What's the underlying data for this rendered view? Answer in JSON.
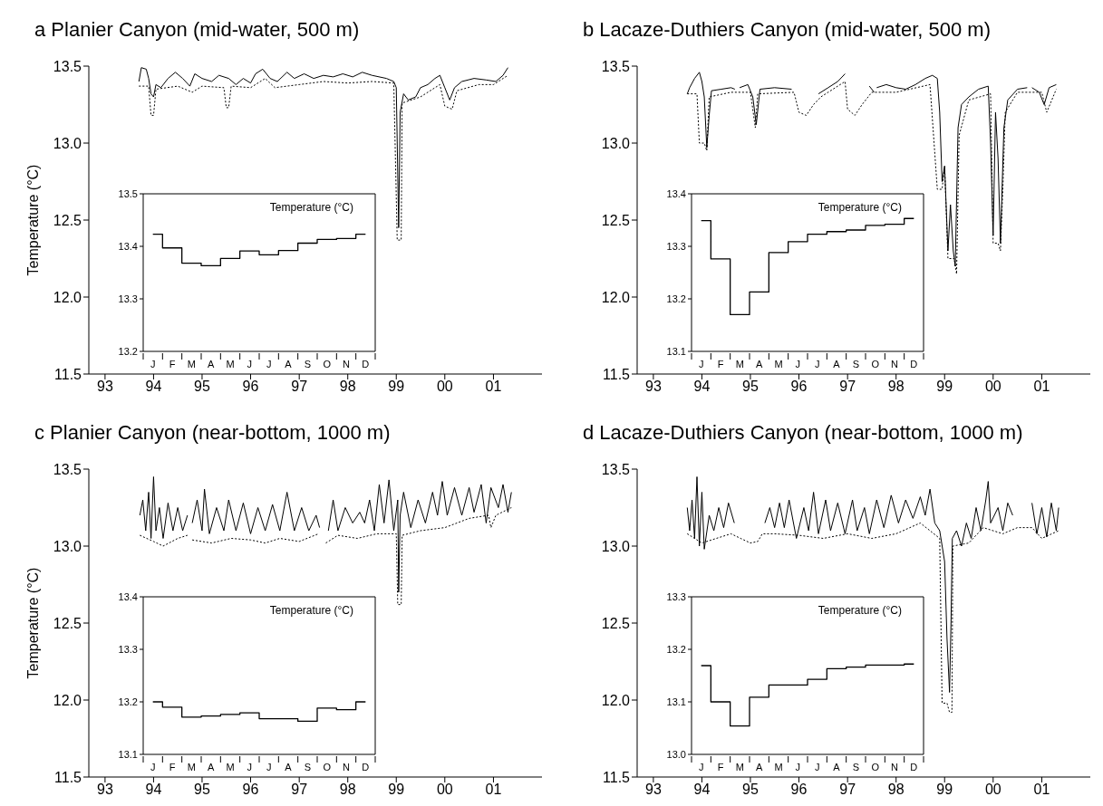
{
  "chart_data": [
    {
      "type": "line",
      "title": "a Planier Canyon (mid-water, 500 m)",
      "ylabel": "Temperature  (°C)",
      "xlim": [
        "1992-09-01",
        "2002-01-01"
      ],
      "xticks": [
        {
          "value": "1993",
          "label": "93"
        },
        {
          "value": "1994",
          "label": "94"
        },
        {
          "value": "1995",
          "label": "95"
        },
        {
          "value": "1996",
          "label": "96"
        },
        {
          "value": "1997",
          "label": "97"
        },
        {
          "value": "1998",
          "label": "98"
        },
        {
          "value": "1999",
          "label": "99"
        },
        {
          "value": "2000",
          "label": "00"
        },
        {
          "value": "2001",
          "label": "01"
        }
      ],
      "ylim": [
        11.5,
        13.5
      ],
      "yticks": [
        {
          "value": 11.5,
          "label": "11.5"
        },
        {
          "value": 12,
          "label": "12.0"
        },
        {
          "value": 12.5,
          "label": "12.5"
        },
        {
          "value": 13,
          "label": "13.0"
        },
        {
          "value": 13.5,
          "label": "13.5"
        }
      ],
      "series": [
        {
          "color": "#000000",
          "line_style": "solid",
          "x": [
            "1993-09-13",
            "1993-10-01",
            "1993-11-07",
            "1993-11-25",
            "1993-12-13",
            "1994-01-01",
            "1994-01-19",
            "1994-02-25",
            "1994-04-20",
            "1994-06-14",
            "1994-08-08",
            "1994-10-01",
            "1994-11-07",
            "1995-01-01",
            "1995-03-14",
            "1995-05-08",
            "1995-07-20",
            "1995-09-13",
            "1995-11-07",
            "1996-01-01",
            "1996-02-07",
            "1996-04-01",
            "1996-05-27",
            "1996-07-20",
            "1996-10-01",
            "1996-11-25",
            "1997-02-07",
            "1997-04-20",
            "1997-07-02",
            "1997-09-13",
            "1997-11-25",
            "1998-02-07",
            "1998-04-20",
            "1998-07-02",
            "1998-10-19",
            "1998-12-13",
            "1999-01-01",
            "1999-01-19",
            "1999-01-30",
            "1999-02-25",
            "1999-04-01",
            "1999-05-27",
            "1999-07-02",
            "1999-08-26",
            "1999-10-19",
            "1999-11-25",
            "2000-01-01",
            "2000-02-07",
            "2000-03-14",
            "2000-05-08",
            "2000-08-08",
            "2000-11-07",
            "2001-01-19",
            "2001-03-14",
            "2001-04-20"
          ],
          "values": [
            13.4,
            13.49,
            13.48,
            13.42,
            13.32,
            13.3,
            13.38,
            13.36,
            13.42,
            13.46,
            13.42,
            13.37,
            13.45,
            13.42,
            13.4,
            13.44,
            13.42,
            13.38,
            13.42,
            13.39,
            13.45,
            13.48,
            13.42,
            13.4,
            13.46,
            13.42,
            13.45,
            13.42,
            13.44,
            13.43,
            13.45,
            13.43,
            13.46,
            13.44,
            13.42,
            13.4,
            13.36,
            12.45,
            13.2,
            13.32,
            13.28,
            13.3,
            13.36,
            13.38,
            13.42,
            13.44,
            13.36,
            13.28,
            13.36,
            13.4,
            13.42,
            13.41,
            13.4,
            13.44,
            13.49
          ]
        },
        {
          "color": "#000000",
          "line_style": "dotted",
          "x": [
            "1993-09-13",
            "1993-11-25",
            "1993-12-13",
            "1994-01-01",
            "1994-01-19",
            "1994-07-02",
            "1994-10-19",
            "1995-01-01",
            "1995-06-14",
            "1995-07-02",
            "1995-07-20",
            "1995-08-08",
            "1996-01-01",
            "1996-04-20",
            "1996-07-02",
            "1997-01-01",
            "1997-07-02",
            "1998-01-01",
            "1998-07-02",
            "1998-12-13",
            "1999-01-08",
            "1999-02-07",
            "1999-02-14",
            "1999-07-02",
            "1999-11-25",
            "2000-01-01",
            "2000-02-25",
            "2000-04-01",
            "2000-09-13",
            "2001-01-01",
            "2001-04-20"
          ],
          "values": [
            13.37,
            13.37,
            13.18,
            13.18,
            13.35,
            13.37,
            13.33,
            13.37,
            13.36,
            13.23,
            13.23,
            13.37,
            13.36,
            13.42,
            13.36,
            13.38,
            13.4,
            13.39,
            13.4,
            13.39,
            12.37,
            12.37,
            13.26,
            13.3,
            13.38,
            13.24,
            13.22,
            13.34,
            13.38,
            13.38,
            13.44
          ]
        }
      ]
    },
    {
      "type": "step",
      "ylabel": "Temperature (°C)",
      "categories": [
        "J",
        "F",
        "M",
        "A",
        "M",
        "J",
        "J",
        "A",
        "S",
        "O",
        "N",
        "D"
      ],
      "values": [
        13.423,
        13.397,
        13.368,
        13.363,
        13.377,
        13.391,
        13.384,
        13.392,
        13.406,
        13.413,
        13.415,
        13.423
      ],
      "color": "#000000",
      "line_style": "solid",
      "ylim": [
        13.2,
        13.5
      ],
      "yticks": [
        13.2,
        13.3,
        13.4,
        13.5
      ]
    },
    {
      "type": "line",
      "title": "b Lacaze-Duthiers Canyon (mid-water, 500 m)",
      "xlim": [
        "1992-09-01",
        "2002-01-01"
      ],
      "xticks": [
        {
          "value": "1993",
          "label": "93"
        },
        {
          "value": "1994",
          "label": "94"
        },
        {
          "value": "1995",
          "label": "95"
        },
        {
          "value": "1996",
          "label": "96"
        },
        {
          "value": "1997",
          "label": "97"
        },
        {
          "value": "1998",
          "label": "98"
        },
        {
          "value": "1999",
          "label": "99"
        },
        {
          "value": "2000",
          "label": "00"
        },
        {
          "value": "2001",
          "label": "01"
        }
      ],
      "ylim": [
        11.5,
        13.5
      ],
      "yticks": [
        {
          "value": 11.5,
          "label": "11.5"
        },
        {
          "value": 12,
          "label": "12.0"
        },
        {
          "value": 12.5,
          "label": "12.5"
        },
        {
          "value": 13,
          "label": "13.0"
        },
        {
          "value": 13.5,
          "label": "13.5"
        }
      ],
      "series": [
        {
          "color": "#000000",
          "line_style": "solid",
          "x": [
            "1993-09-13",
            "1993-10-01",
            "1993-11-07",
            "1993-12-13",
            "1994-01-01",
            "1994-01-19",
            "1994-02-07",
            "1994-02-25",
            "1994-03-14",
            "1994-05-27",
            "1994-08-08",
            "1994-09-06",
            "1994-09-20",
            "1994-10-12",
            "1994-12-13",
            "1995-01-19",
            "1995-02-14",
            "1995-03-14",
            "1995-07-02",
            "1995-11-07",
            "1996-02-07",
            "1996-05-27",
            "1996-08-08",
            "1996-10-19",
            "1996-12-13",
            "1997-03-14",
            "1997-06-14",
            "1997-07-20",
            "1997-07-28",
            "1997-08-08",
            "1997-10-19",
            "1998-01-01",
            "1998-03-14",
            "1998-05-27",
            "1998-08-08",
            "1998-10-01",
            "1998-11-07",
            "1998-11-25",
            "1998-12-13",
            "1999-01-01",
            "1999-01-26",
            "1999-02-14",
            "1999-03-07",
            "1999-03-22",
            "1999-04-12",
            "1999-05-08",
            "1999-07-02",
            "1999-09-13",
            "1999-11-25",
            "1999-12-13",
            "2000-01-01",
            "2000-01-19",
            "2000-02-07",
            "2000-02-25",
            "2000-03-22",
            "2000-04-20",
            "2000-07-02",
            "2000-09-13",
            "2000-10-01",
            "2000-10-19",
            "2000-12-13",
            "2001-01-19",
            "2001-02-25",
            "2001-04-20"
          ],
          "values": [
            13.32,
            13.36,
            13.42,
            13.46,
            13.4,
            13.3,
            12.97,
            13.18,
            13.34,
            13.35,
            13.36,
            13.35,
            null,
            13.36,
            13.38,
            13.3,
            13.12,
            13.35,
            13.36,
            13.35,
            null,
            13.32,
            13.36,
            13.4,
            13.45,
            null,
            13.37,
            13.33,
            null,
            13.36,
            13.38,
            13.36,
            13.35,
            13.38,
            13.42,
            13.44,
            13.42,
            13.2,
            12.75,
            12.85,
            12.3,
            12.6,
            12.3,
            12.2,
            13.1,
            13.25,
            13.3,
            13.35,
            13.37,
            13.0,
            12.4,
            13.2,
            12.9,
            12.35,
            13.1,
            13.28,
            13.35,
            13.36,
            null,
            13.36,
            13.33,
            13.25,
            13.36,
            13.38
          ]
        },
        {
          "color": "#000000",
          "line_style": "dotted",
          "x": [
            "1993-09-13",
            "1993-11-25",
            "1993-12-13",
            "1994-01-19",
            "1994-02-07",
            "1994-02-25",
            "1994-08-08",
            "1995-01-01",
            "1995-02-07",
            "1995-02-25",
            "1995-11-25",
            "1996-01-01",
            "1996-02-25",
            "1996-04-20",
            "1996-06-14",
            "1996-12-13",
            "1997-01-01",
            "1997-02-25",
            "1997-04-20",
            "1997-07-02",
            "1998-01-01",
            "1998-09-13",
            "1998-11-07",
            "1998-12-13",
            "1999-01-01",
            "1999-01-26",
            "1999-03-14",
            "1999-04-01",
            "1999-04-20",
            "1999-07-02",
            "1999-12-13",
            "2000-01-01",
            "2000-02-07",
            "2000-02-25",
            "2000-03-14",
            "2000-04-01",
            "2000-07-02",
            "2001-01-01",
            "2001-02-07",
            "2001-04-20"
          ],
          "values": [
            13.32,
            13.32,
            13.0,
            13.0,
            12.95,
            13.3,
            13.33,
            13.33,
            13.1,
            13.32,
            13.33,
            13.2,
            13.18,
            13.25,
            13.3,
            13.4,
            13.22,
            13.18,
            13.25,
            13.33,
            13.33,
            13.38,
            12.7,
            12.7,
            12.85,
            12.25,
            12.25,
            12.15,
            13.05,
            13.28,
            13.32,
            12.35,
            12.35,
            12.3,
            12.7,
            13.2,
            13.33,
            13.33,
            13.2,
            13.35
          ]
        }
      ]
    },
    {
      "type": "step",
      "ylabel": "Temperature (°C)",
      "categories": [
        "J",
        "F",
        "M",
        "A",
        "M",
        "J",
        "J",
        "A",
        "S",
        "O",
        "N",
        "D"
      ],
      "values": [
        13.349,
        13.276,
        13.17,
        13.213,
        13.288,
        13.309,
        13.323,
        13.328,
        13.331,
        13.34,
        13.342,
        13.353
      ],
      "color": "#000000",
      "line_style": "solid",
      "ylim": [
        13.1,
        13.4
      ],
      "yticks": [
        13.1,
        13.2,
        13.3,
        13.4
      ]
    },
    {
      "type": "line",
      "title": "c Planier Canyon (near-bottom, 1000 m)",
      "ylabel": "Temperature  (°C)",
      "xlim": [
        "1992-09-01",
        "2002-01-01"
      ],
      "xticks": [
        {
          "value": "1993",
          "label": "93"
        },
        {
          "value": "1994",
          "label": "94"
        },
        {
          "value": "1995",
          "label": "95"
        },
        {
          "value": "1996",
          "label": "96"
        },
        {
          "value": "1997",
          "label": "97"
        },
        {
          "value": "1998",
          "label": "98"
        },
        {
          "value": "1999",
          "label": "99"
        },
        {
          "value": "2000",
          "label": "00"
        },
        {
          "value": "2001",
          "label": "01"
        }
      ],
      "ylim": [
        11.5,
        13.5
      ],
      "yticks": [
        {
          "value": 11.5,
          "label": "11.5"
        },
        {
          "value": 12,
          "label": "12.0"
        },
        {
          "value": 12.5,
          "label": "12.5"
        },
        {
          "value": 13,
          "label": "13.0"
        },
        {
          "value": 13.5,
          "label": "13.5"
        }
      ],
      "series": [
        {
          "color": "#000000",
          "line_style": "solid",
          "x": [
            "1993-09-20",
            "1993-10-12",
            "1993-11-03",
            "1993-11-25",
            "1993-12-13",
            "1994-01-01",
            "1994-01-19",
            "1994-02-14",
            "1994-03-14",
            "1994-04-20",
            "1994-05-27",
            "1994-07-02",
            "1994-08-08",
            "1994-09-13",
            "1994-10-01",
            "1994-10-19",
            "1994-11-25",
            "1995-01-01",
            "1995-01-19",
            "1995-02-25",
            "1995-04-20",
            "1995-06-14",
            "1995-07-20",
            "1995-09-13",
            "1995-11-07",
            "1996-01-01",
            "1996-02-25",
            "1996-04-20",
            "1996-06-14",
            "1996-08-08",
            "1996-10-01",
            "1996-11-25",
            "1997-01-19",
            "1997-03-14",
            "1997-05-08",
            "1997-06-03",
            "1997-07-02",
            "1997-08-08",
            "1997-09-13",
            "1997-10-19",
            "1997-12-13",
            "1998-02-07",
            "1998-04-01",
            "1998-05-08",
            "1998-06-14",
            "1998-07-20",
            "1998-08-26",
            "1998-10-01",
            "1998-11-07",
            "1998-12-13",
            "1999-01-12",
            "1999-01-19",
            "1999-01-30",
            "1999-02-25",
            "1999-04-20",
            "1999-06-14",
            "1999-08-08",
            "1999-10-01",
            "1999-11-07",
            "1999-12-13",
            "2000-01-19",
            "2000-03-14",
            "2000-05-08",
            "2000-07-02",
            "2000-08-08",
            "2000-10-01",
            "2000-11-07",
            "2000-12-13",
            "2001-02-07",
            "2001-03-14",
            "2001-04-20",
            "2001-05-16"
          ],
          "values": [
            13.2,
            13.3,
            13.1,
            13.35,
            13.05,
            13.45,
            13.1,
            13.25,
            13.05,
            13.28,
            13.1,
            13.25,
            13.1,
            13.2,
            null,
            13.15,
            13.3,
            13.1,
            13.37,
            13.08,
            13.25,
            13.1,
            13.3,
            13.1,
            13.28,
            13.08,
            13.25,
            13.1,
            13.27,
            13.1,
            13.35,
            13.1,
            13.25,
            13.1,
            13.2,
            13.12,
            null,
            13.1,
            13.3,
            13.1,
            13.25,
            13.15,
            13.22,
            13.15,
            13.3,
            13.1,
            13.4,
            13.15,
            13.43,
            13.1,
            13.3,
            12.7,
            13.2,
            13.35,
            13.12,
            13.3,
            13.15,
            13.35,
            13.2,
            13.42,
            13.2,
            13.38,
            13.2,
            13.38,
            13.22,
            13.4,
            13.15,
            13.38,
            13.25,
            13.4,
            13.22,
            13.35
          ]
        },
        {
          "color": "#000000",
          "line_style": "dotted",
          "x": [
            "1993-09-20",
            "1994-01-01",
            "1994-03-14",
            "1994-07-02",
            "1994-09-13",
            "1994-10-01",
            "1994-10-19",
            "1995-03-14",
            "1995-08-08",
            "1996-01-01",
            "1996-04-20",
            "1996-08-08",
            "1997-01-01",
            "1997-05-27",
            "1997-07-02",
            "1997-07-20",
            "1997-10-19",
            "1998-03-14",
            "1998-08-08",
            "1999-01-01",
            "1999-01-12",
            "1999-02-07",
            "1999-02-14",
            "1999-07-02",
            "2000-01-01",
            "2000-07-02",
            "2000-11-25",
            "2000-12-13",
            "2001-01-19",
            "2001-05-16"
          ],
          "values": [
            13.07,
            13.03,
            13.0,
            13.05,
            13.07,
            null,
            13.04,
            13.02,
            13.05,
            13.04,
            13.02,
            13.05,
            13.03,
            13.08,
            null,
            13.02,
            13.07,
            13.05,
            13.08,
            13.08,
            12.62,
            12.62,
            13.07,
            13.1,
            13.12,
            13.18,
            13.2,
            13.12,
            13.2,
            13.25
          ]
        }
      ]
    },
    {
      "type": "step",
      "ylabel": "Temperature (°C)",
      "categories": [
        "J",
        "F",
        "M",
        "A",
        "M",
        "J",
        "J",
        "A",
        "S",
        "O",
        "N",
        "D"
      ],
      "values": [
        13.2,
        13.19,
        13.171,
        13.173,
        13.176,
        13.179,
        13.168,
        13.168,
        13.163,
        13.188,
        13.185,
        13.2
      ],
      "color": "#000000",
      "line_style": "solid",
      "ylim": [
        13.1,
        13.4
      ],
      "yticks": [
        13.1,
        13.2,
        13.3,
        13.4
      ]
    },
    {
      "type": "line",
      "title": "d Lacaze-Duthiers Canyon (near-bottom, 1000 m)",
      "xlim": [
        "1992-09-01",
        "2002-01-01"
      ],
      "xticks": [
        {
          "value": "1993",
          "label": "93"
        },
        {
          "value": "1994",
          "label": "94"
        },
        {
          "value": "1995",
          "label": "95"
        },
        {
          "value": "1996",
          "label": "96"
        },
        {
          "value": "1997",
          "label": "97"
        },
        {
          "value": "1998",
          "label": "98"
        },
        {
          "value": "1999",
          "label": "99"
        },
        {
          "value": "2000",
          "label": "00"
        },
        {
          "value": "2001",
          "label": "01"
        }
      ],
      "ylim": [
        11.5,
        13.5
      ],
      "yticks": [
        {
          "value": 11.5,
          "label": "11.5"
        },
        {
          "value": 12,
          "label": "12.0"
        },
        {
          "value": 12.5,
          "label": "12.5"
        },
        {
          "value": 13,
          "label": "13.0"
        },
        {
          "value": 13.5,
          "label": "13.5"
        }
      ],
      "series": [
        {
          "color": "#000000",
          "line_style": "solid",
          "x": [
            "1993-09-13",
            "1993-10-01",
            "1993-10-19",
            "1993-11-07",
            "1993-11-25",
            "1993-12-13",
            "1994-01-01",
            "1994-01-19",
            "1994-02-25",
            "1994-04-01",
            "1994-05-08",
            "1994-06-14",
            "1994-07-20",
            "1994-09-02",
            "1995-01-01",
            "1995-04-20",
            "1995-05-27",
            "1995-07-02",
            "1995-08-08",
            "1995-09-13",
            "1995-10-19",
            "1995-12-13",
            "1996-02-07",
            "1996-03-14",
            "1996-04-20",
            "1996-05-27",
            "1996-07-20",
            "1996-08-26",
            "1996-10-19",
            "1996-12-13",
            "1997-02-07",
            "1997-03-14",
            "1997-05-08",
            "1997-06-14",
            "1997-08-08",
            "1997-10-01",
            "1997-11-25",
            "1998-01-19",
            "1998-03-14",
            "1998-05-08",
            "1998-07-02",
            "1998-08-08",
            "1998-09-13",
            "1998-10-19",
            "1998-11-25",
            "1999-01-01",
            "1999-01-19",
            "1999-02-07",
            "1999-02-18",
            "1999-02-28",
            "1999-04-01",
            "1999-05-08",
            "1999-06-14",
            "1999-07-20",
            "1999-08-26",
            "1999-10-01",
            "1999-11-07",
            "1999-11-25",
            "1999-12-13",
            "2000-02-07",
            "2000-03-14",
            "2000-04-20",
            "2000-05-27",
            "2000-08-08",
            "2000-10-19",
            "2000-11-25",
            "2001-01-01",
            "2001-02-07",
            "2001-03-14",
            "2001-04-20",
            "2001-05-08"
          ],
          "values": [
            13.25,
            13.1,
            13.3,
            13.05,
            13.45,
            13.0,
            13.35,
            12.98,
            13.2,
            13.1,
            13.25,
            13.12,
            13.28,
            13.15,
            null,
            13.15,
            13.25,
            13.12,
            13.28,
            13.12,
            13.3,
            13.05,
            13.25,
            13.1,
            13.35,
            13.08,
            13.3,
            13.1,
            13.28,
            13.08,
            13.3,
            13.1,
            13.25,
            13.08,
            13.3,
            13.12,
            13.33,
            13.15,
            13.3,
            13.18,
            13.32,
            13.2,
            13.37,
            13.15,
            13.1,
            12.9,
            12.4,
            12.05,
            12.5,
            13.05,
            13.1,
            13.0,
            13.15,
            13.05,
            13.25,
            13.1,
            13.3,
            13.42,
            13.15,
            13.25,
            13.1,
            13.28,
            13.2,
            null,
            13.28,
            13.08,
            13.25,
            13.06,
            13.28,
            13.1,
            13.25
          ]
        },
        {
          "color": "#000000",
          "line_style": "dotted",
          "x": [
            "1993-09-13",
            "1994-01-01",
            "1994-04-20",
            "1994-08-08",
            "1994-10-19",
            "1995-01-01",
            "1995-02-25",
            "1995-04-01",
            "1995-07-02",
            "1996-01-01",
            "1996-07-02",
            "1997-01-01",
            "1997-07-02",
            "1998-01-01",
            "1998-07-02",
            "1998-11-25",
            "1998-12-13",
            "1999-01-19",
            "1999-02-07",
            "1999-02-25",
            "1999-03-04",
            "1999-07-02",
            "1999-10-19",
            "2000-03-14",
            "2000-07-02",
            "2000-10-19",
            "2001-01-01",
            "2001-05-08"
          ],
          "values": [
            13.08,
            13.02,
            13.05,
            13.08,
            13.05,
            13.02,
            13.03,
            13.08,
            13.08,
            13.07,
            13.05,
            13.08,
            13.05,
            13.08,
            13.15,
            13.05,
            11.98,
            11.98,
            11.92,
            11.92,
            13.0,
            13.02,
            13.12,
            13.08,
            13.12,
            13.12,
            13.05,
            13.1
          ]
        }
      ]
    },
    {
      "type": "step",
      "ylabel": "Temperature (°C)",
      "categories": [
        "J",
        "F",
        "M",
        "A",
        "M",
        "J",
        "J",
        "A",
        "S",
        "O",
        "N",
        "D"
      ],
      "values": [
        13.169,
        13.1,
        13.054,
        13.109,
        13.132,
        13.132,
        13.143,
        13.163,
        13.166,
        13.17,
        13.17,
        13.172
      ],
      "color": "#000000",
      "line_style": "solid",
      "ylim": [
        13.0,
        13.3
      ],
      "yticks": [
        {
          "value": 13.0,
          "label": "13.0"
        },
        13.1,
        13.2,
        13.3
      ]
    }
  ]
}
